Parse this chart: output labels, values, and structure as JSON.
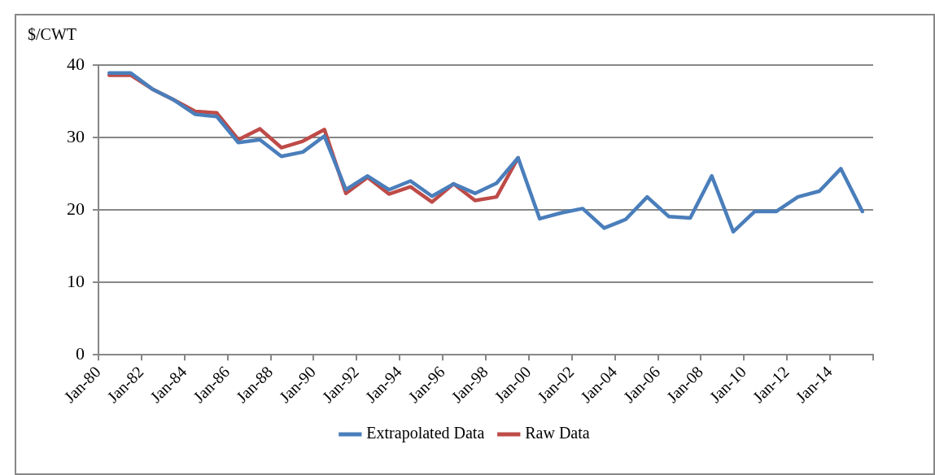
{
  "chart_data": {
    "type": "line",
    "ylabel": "$/CWT",
    "x": [
      "1980-07",
      "1981-07",
      "1982-07",
      "1983-07",
      "1984-07",
      "1985-07",
      "1986-07",
      "1987-07",
      "1988-07",
      "1989-07",
      "1990-07",
      "1991-07",
      "1992-07",
      "1993-07",
      "1994-07",
      "1995-07",
      "1996-07",
      "1997-07",
      "1998-07",
      "1999-07",
      "2000-07",
      "2001-07",
      "2002-07",
      "2003-07",
      "2004-07",
      "2005-07",
      "2006-07",
      "2007-07",
      "2008-07",
      "2009-07",
      "2010-07",
      "2011-07",
      "2012-07",
      "2013-07",
      "2014-07",
      "2015-07"
    ],
    "series": [
      {
        "name": "Extrapolated Data",
        "color": "#4a7ebb",
        "values": [
          38.9,
          38.9,
          36.7,
          35.2,
          33.2,
          32.9,
          29.3,
          29.7,
          27.4,
          28.0,
          30.2,
          22.8,
          24.7,
          22.8,
          24.0,
          21.9,
          23.6,
          22.3,
          23.7,
          27.2,
          18.8,
          19.6,
          20.2,
          17.5,
          18.7,
          21.8,
          19.1,
          18.9,
          24.7,
          17.0,
          19.8,
          19.8,
          21.8,
          22.6,
          25.7,
          19.8
        ]
      },
      {
        "name": "Raw Data",
        "color": "#be4b48",
        "values": [
          38.6,
          38.6,
          36.7,
          35.2,
          33.6,
          33.4,
          29.7,
          31.2,
          28.6,
          29.5,
          31.1,
          22.3,
          24.5,
          22.2,
          23.2,
          21.1,
          23.6,
          21.3,
          21.8,
          27.2,
          null,
          null,
          null,
          null,
          null,
          null,
          null,
          null,
          null,
          null,
          null,
          null,
          null,
          null,
          null,
          null
        ]
      }
    ],
    "xlim": [
      "1980-01",
      "2016-01"
    ],
    "xticks": [
      {
        "value": "1980-01",
        "label": "Jan-80"
      },
      {
        "value": "1982-01",
        "label": "Jan-82"
      },
      {
        "value": "1984-01",
        "label": "Jan-84"
      },
      {
        "value": "1986-01",
        "label": "Jan-86"
      },
      {
        "value": "1988-01",
        "label": "Jan-88"
      },
      {
        "value": "1990-01",
        "label": "Jan-90"
      },
      {
        "value": "1992-01",
        "label": "Jan-92"
      },
      {
        "value": "1994-01",
        "label": "Jan-94"
      },
      {
        "value": "1996-01",
        "label": "Jan-96"
      },
      {
        "value": "1998-01",
        "label": "Jan-98"
      },
      {
        "value": "2000-01",
        "label": "Jan-00"
      },
      {
        "value": "2002-01",
        "label": "Jan-02"
      },
      {
        "value": "2004-01",
        "label": "Jan-04"
      },
      {
        "value": "2006-01",
        "label": "Jan-06"
      },
      {
        "value": "2008-01",
        "label": "Jan-08"
      },
      {
        "value": "2010-01",
        "label": "Jan-10"
      },
      {
        "value": "2012-01",
        "label": "Jan-12"
      },
      {
        "value": "2014-01",
        "label": "Jan-14"
      },
      {
        "value": "2016-01",
        "label": null
      }
    ],
    "ylim": [
      0,
      40
    ],
    "yticks": [
      0,
      10,
      20,
      30,
      40
    ],
    "grid": "y",
    "legend": "bottom",
    "marker": "none",
    "line_style": "solid"
  }
}
